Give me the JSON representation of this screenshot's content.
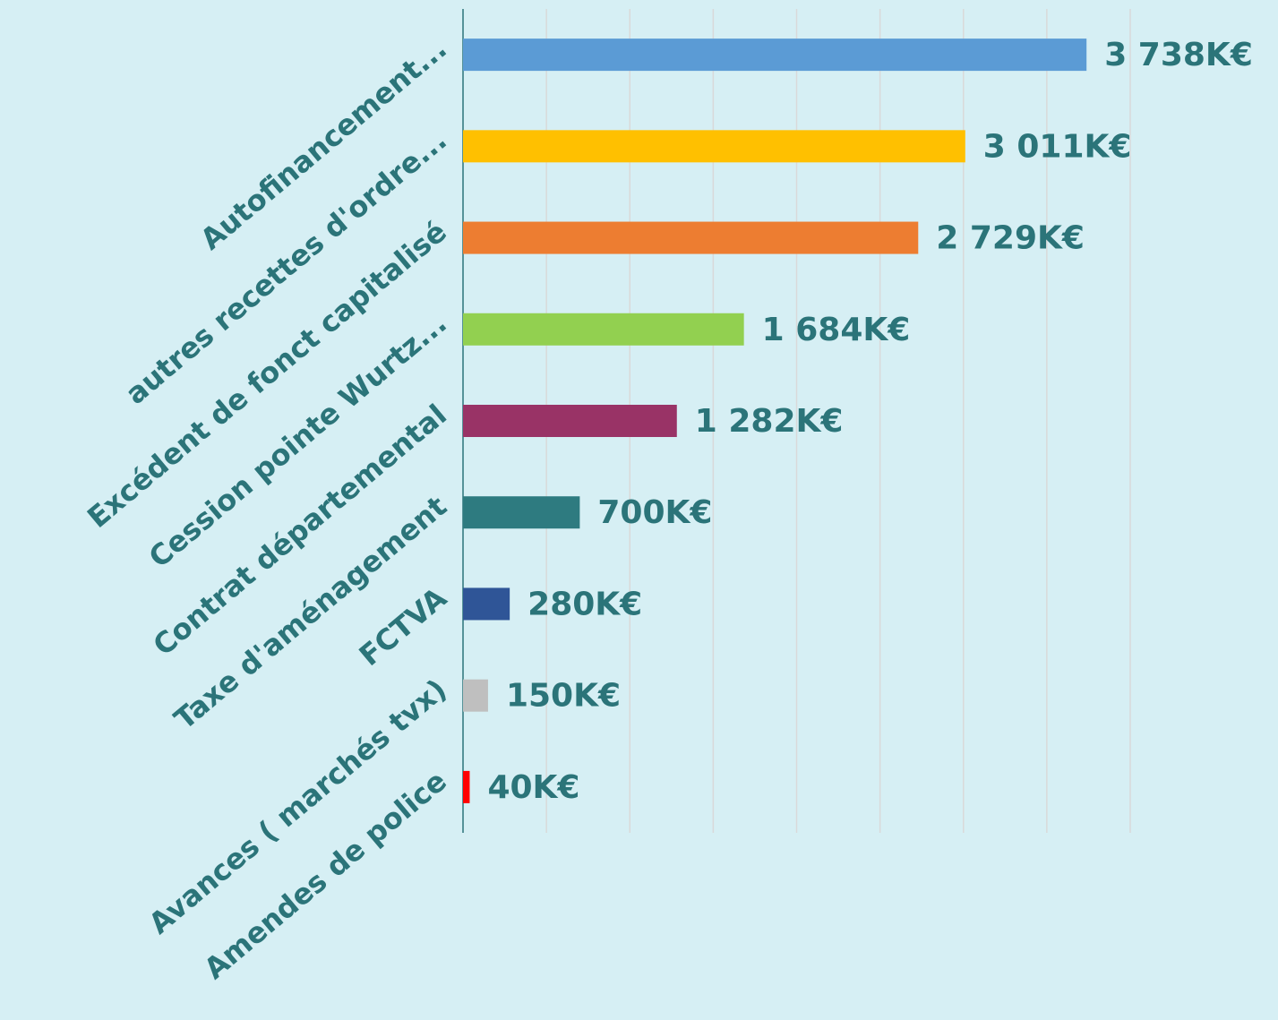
{
  "chart_data": {
    "type": "bar",
    "orientation": "horizontal",
    "categories": [
      "Autofinancement...",
      "autres recettes d'ordre...",
      "Excédent de fonct capitalisé",
      "Cession pointe Wurtz...",
      "Contrat départemental",
      "Taxe d'aménagement",
      "FCTVA",
      "Avances ( marchés tvx)",
      "Amendes de police"
    ],
    "values": [
      3738,
      3011,
      2729,
      1684,
      1282,
      700,
      280,
      150,
      40
    ],
    "value_labels": [
      "3 738K€",
      "3 011K€",
      "2 729K€",
      "1 684K€",
      "1 282K€",
      "700K€",
      "280K€",
      "150K€",
      "40K€"
    ],
    "colors": [
      "#5b9bd5",
      "#ffc000",
      "#ed7d31",
      "#92d050",
      "#993366",
      "#2e7b80",
      "#2f5597",
      "#bfbfbf",
      "#ff0000"
    ],
    "xlim": [
      0,
      4000
    ],
    "xticks": [
      0,
      500,
      1000,
      1500,
      2000,
      2500,
      3000,
      3500,
      4000
    ],
    "grid": true
  }
}
